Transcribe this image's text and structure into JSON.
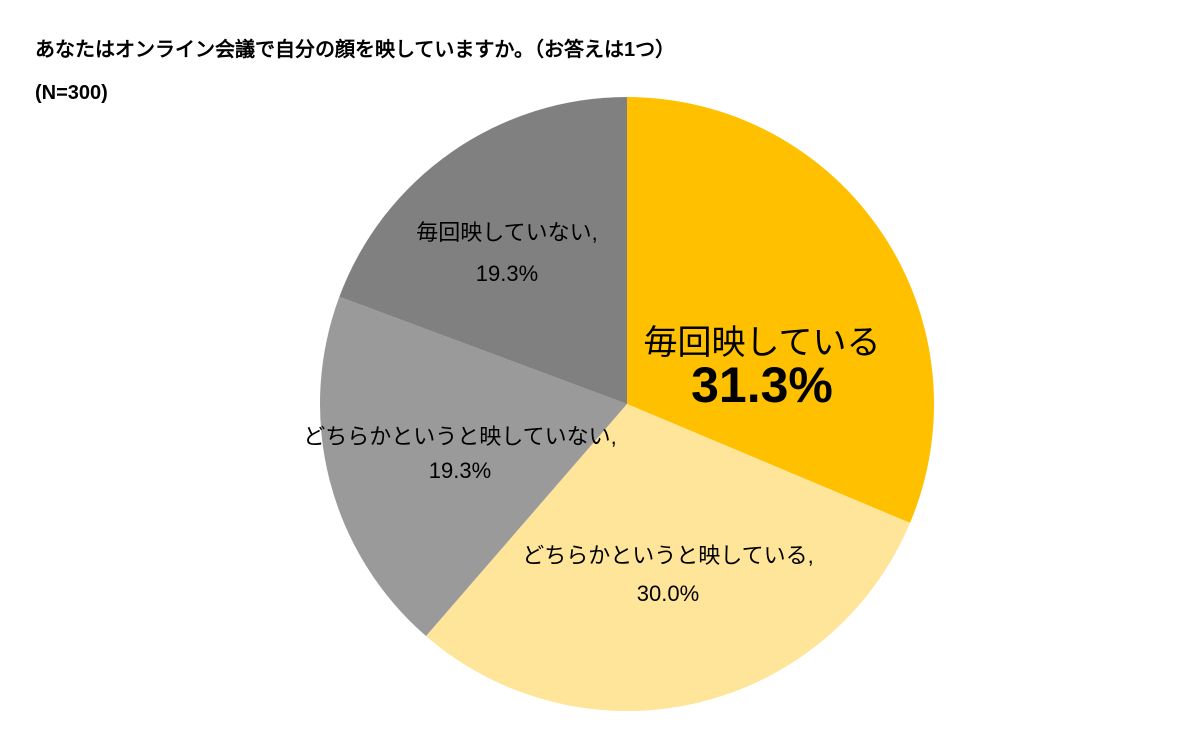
{
  "header": {
    "title": "あなたはオンライン会議で自分の顔を映していますか。（お答えは1つ）",
    "sample_size": "(N=300)"
  },
  "chart_data": {
    "type": "pie",
    "title": "あなたはオンライン会議で自分の顔を映していますか。（お答えは1つ）",
    "n": 300,
    "start_angle_deg": 0,
    "direction": "clockwise",
    "legend_position": "none",
    "label_color": "#000000",
    "categories": [
      "毎回映している",
      "どちらかというと映している",
      "どちらかというと映していない",
      "毎回映していない"
    ],
    "values": [
      31.3,
      30.0,
      19.3,
      19.3
    ],
    "slices": [
      {
        "label": "毎回映している",
        "value": 31.3,
        "percent_text": "31.3%",
        "label_line1": "毎回映している",
        "label_line2": "31.3%",
        "color": "#FFC000",
        "emphasized": true
      },
      {
        "label": "どちらかというと映している",
        "value": 30.0,
        "percent_text": "30.0%",
        "label_line1": "どちらかというと映している,",
        "label_line2": "30.0%",
        "color": "#FFE599",
        "emphasized": false
      },
      {
        "label": "どちらかというと映していない",
        "value": 19.3,
        "percent_text": "19.3%",
        "label_line1": "どちらかというと映していない,",
        "label_line2": "19.3%",
        "color": "#9A9A9A",
        "emphasized": false
      },
      {
        "label": "毎回映していない",
        "value": 19.3,
        "percent_text": "19.3%",
        "label_line1": "毎回映していない,",
        "label_line2": "19.3%",
        "color": "#808080",
        "emphasized": false
      }
    ]
  }
}
